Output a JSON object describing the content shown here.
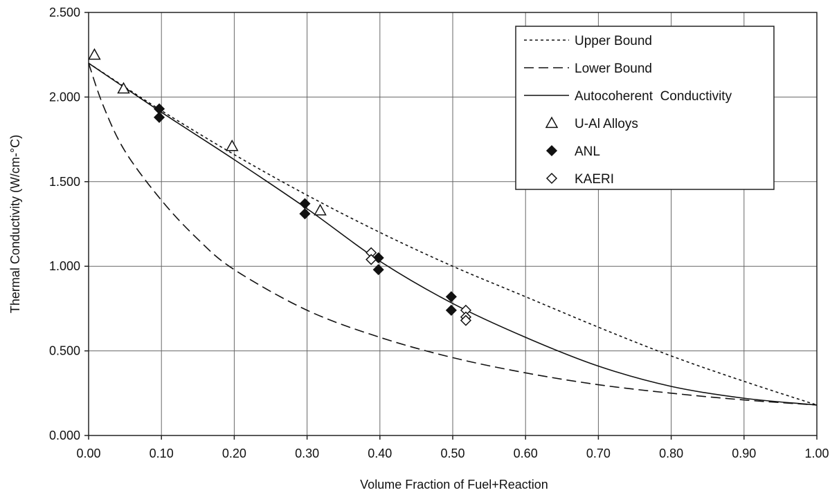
{
  "chart_data": {
    "type": "line",
    "title": "",
    "xlabel": "Volume Fraction of Fuel+Reaction",
    "ylabel": "Thermal Conductivity (W/cm-°C)",
    "xlim": [
      0,
      1
    ],
    "ylim": [
      0,
      2.5
    ],
    "grid": true,
    "legend_position": "top-right",
    "x_ticks": [
      0,
      0.1,
      0.2,
      0.3,
      0.4,
      0.5,
      0.6,
      0.7,
      0.8,
      0.9,
      1.0
    ],
    "x_tick_labels": [
      "0.00",
      "0.10",
      "0.20",
      "0.30",
      "0.40",
      "0.50",
      "0.60",
      "0.70",
      "0.80",
      "0.90",
      "1.00"
    ],
    "y_ticks": [
      0,
      0.5,
      1.0,
      1.5,
      2.0,
      2.5
    ],
    "y_tick_labels": [
      "0.000",
      "0.500",
      "1.000",
      "1.500",
      "2.000",
      "2.500"
    ],
    "series": [
      {
        "name": "Upper Bound",
        "kind": "line",
        "style": "dotted",
        "color": "#111111",
        "x": [
          0,
          0.1,
          0.2,
          0.3,
          0.4,
          0.5,
          0.6,
          0.7,
          0.8,
          0.9,
          1.0
        ],
        "y": [
          2.2,
          1.92,
          1.66,
          1.42,
          1.2,
          1.0,
          0.82,
          0.64,
          0.47,
          0.32,
          0.18
        ]
      },
      {
        "name": "Lower Bound",
        "kind": "line",
        "style": "dashed",
        "color": "#111111",
        "x": [
          0,
          0.02,
          0.05,
          0.1,
          0.15,
          0.2,
          0.3,
          0.4,
          0.5,
          0.6,
          0.7,
          0.8,
          0.9,
          1.0
        ],
        "y": [
          2.2,
          1.95,
          1.68,
          1.39,
          1.16,
          0.98,
          0.74,
          0.58,
          0.46,
          0.37,
          0.3,
          0.25,
          0.21,
          0.18
        ]
      },
      {
        "name": "Autocoherent  Conductivity",
        "kind": "line",
        "style": "solid",
        "color": "#111111",
        "x": [
          0,
          0.1,
          0.2,
          0.3,
          0.4,
          0.5,
          0.6,
          0.7,
          0.8,
          0.9,
          1.0
        ],
        "y": [
          2.2,
          1.91,
          1.63,
          1.34,
          1.03,
          0.78,
          0.58,
          0.41,
          0.29,
          0.22,
          0.18
        ]
      },
      {
        "name": "U-Al Alloys",
        "kind": "scatter",
        "marker": "triangle-open",
        "color": "#111111",
        "x": [
          0.008,
          0.048,
          0.197,
          0.318
        ],
        "y": [
          2.25,
          2.05,
          1.71,
          1.33
        ]
      },
      {
        "name": "ANL",
        "kind": "scatter",
        "marker": "diamond-filled",
        "color": "#111111",
        "x": [
          0.097,
          0.097,
          0.297,
          0.297,
          0.398,
          0.398,
          0.498,
          0.498
        ],
        "y": [
          1.93,
          1.88,
          1.37,
          1.31,
          1.05,
          0.98,
          0.82,
          0.74
        ]
      },
      {
        "name": "KAERI",
        "kind": "scatter",
        "marker": "diamond-open",
        "color": "#111111",
        "x": [
          0.388,
          0.388,
          0.518,
          0.518,
          0.518
        ],
        "y": [
          1.08,
          1.04,
          0.74,
          0.7,
          0.68
        ]
      }
    ]
  }
}
